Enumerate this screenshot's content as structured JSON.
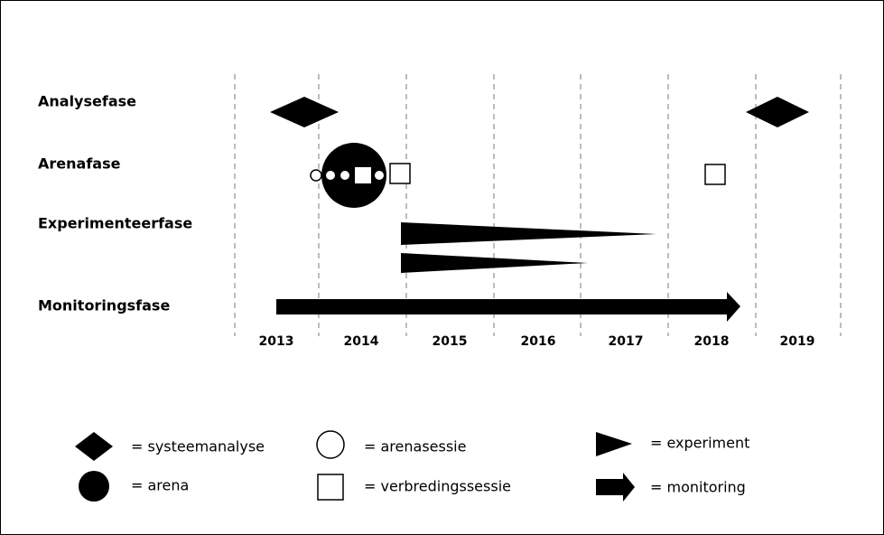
{
  "phases": [
    "Analysefase",
    "Arenafase",
    "Experimenteerfase",
    "Monitoringsfase"
  ],
  "years": [
    "2013",
    "2014",
    "2015",
    "2016",
    "2017",
    "2018",
    "2019"
  ],
  "legend": [
    "= systeemanalyse",
    "= arena",
    "= arenasessie",
    "= verbredingssessie",
    "= experiment",
    "= monitoring"
  ]
}
